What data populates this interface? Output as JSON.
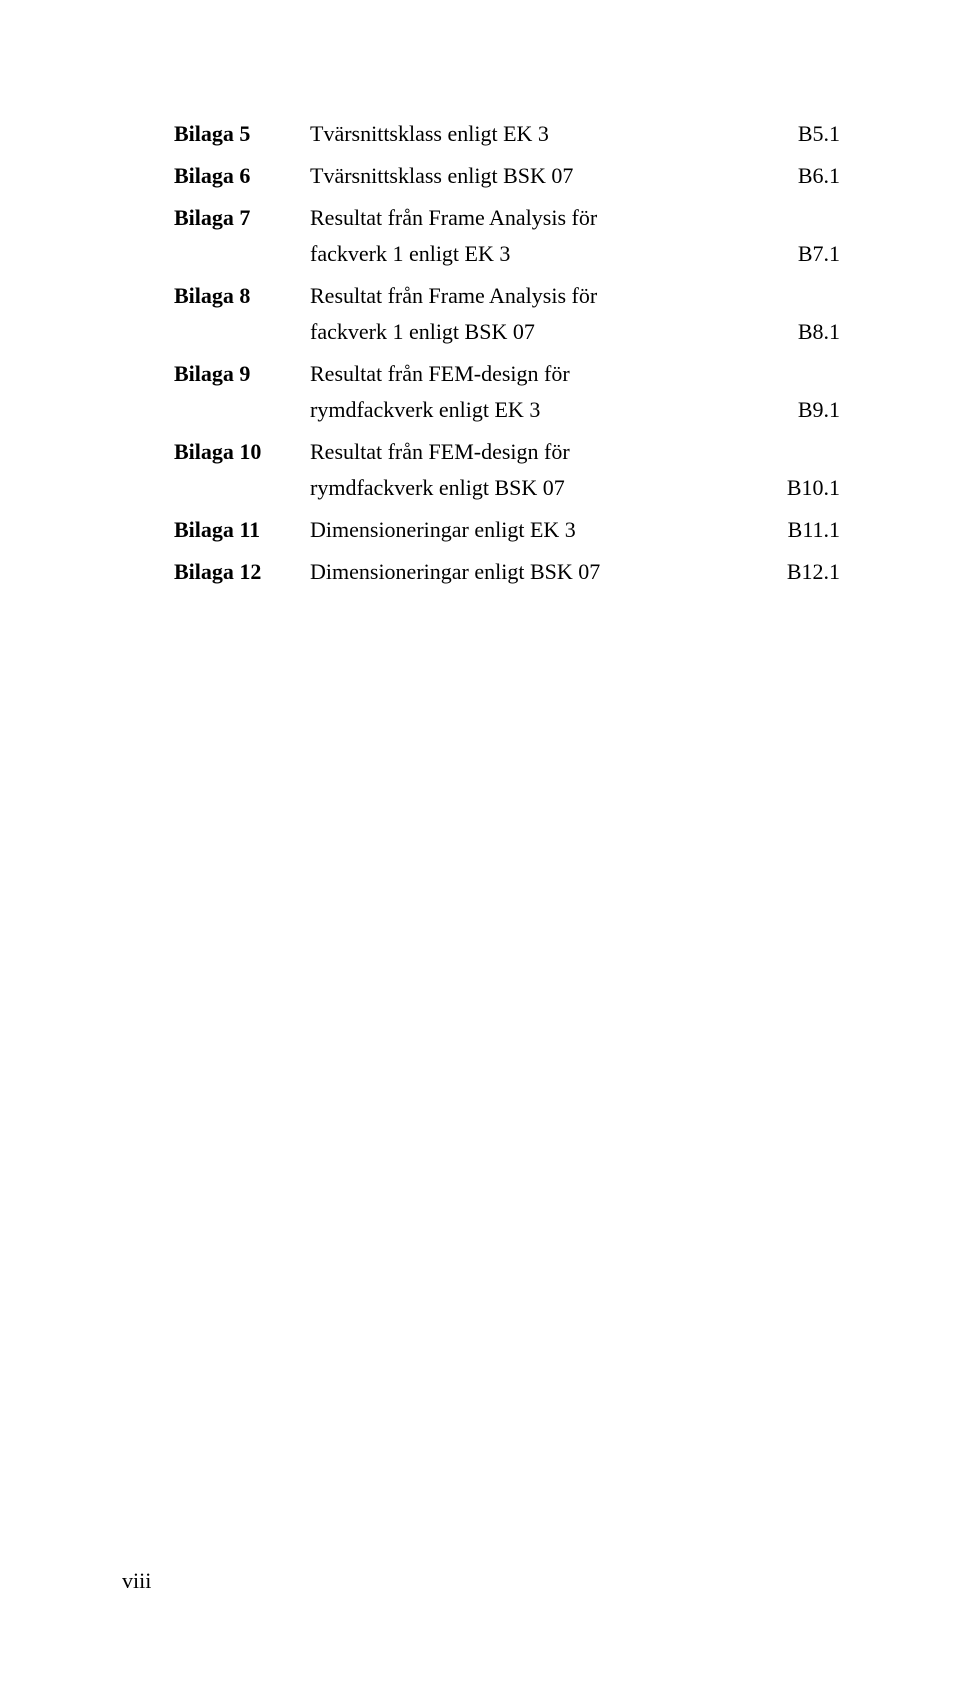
{
  "entries": [
    {
      "label": "Bilaga 5",
      "lines": [
        {
          "text": "Tvärsnittsklass enligt EK 3",
          "code": "B5.1"
        }
      ]
    },
    {
      "label": "Bilaga 6",
      "lines": [
        {
          "text": "Tvärsnittsklass enligt BSK 07",
          "code": "B6.1"
        }
      ]
    },
    {
      "label": "Bilaga 7",
      "lines": [
        {
          "text": "Resultat från Frame Analysis för",
          "code": ""
        },
        {
          "text": "fackverk 1 enligt EK 3",
          "code": "B7.1"
        }
      ]
    },
    {
      "label": "Bilaga 8",
      "lines": [
        {
          "text": "Resultat från Frame Analysis för",
          "code": ""
        },
        {
          "text": "fackverk 1 enligt BSK 07",
          "code": "B8.1"
        }
      ]
    },
    {
      "label": "Bilaga 9",
      "lines": [
        {
          "text": "Resultat från FEM-design för",
          "code": ""
        },
        {
          "text": "rymdfackverk enligt EK 3",
          "code": "B9.1"
        }
      ]
    },
    {
      "label": "Bilaga 10",
      "lines": [
        {
          "text": "Resultat från FEM-design för",
          "code": ""
        },
        {
          "text": "rymdfackverk enligt BSK 07",
          "code": "B10.1"
        }
      ]
    },
    {
      "label": "Bilaga 11",
      "lines": [
        {
          "text": "Dimensioneringar enligt EK 3",
          "code": "B11.1"
        }
      ]
    },
    {
      "label": "Bilaga 12",
      "lines": [
        {
          "text": "Dimensioneringar enligt BSK 07",
          "code": "B12.1"
        }
      ]
    }
  ],
  "footer": "viii"
}
